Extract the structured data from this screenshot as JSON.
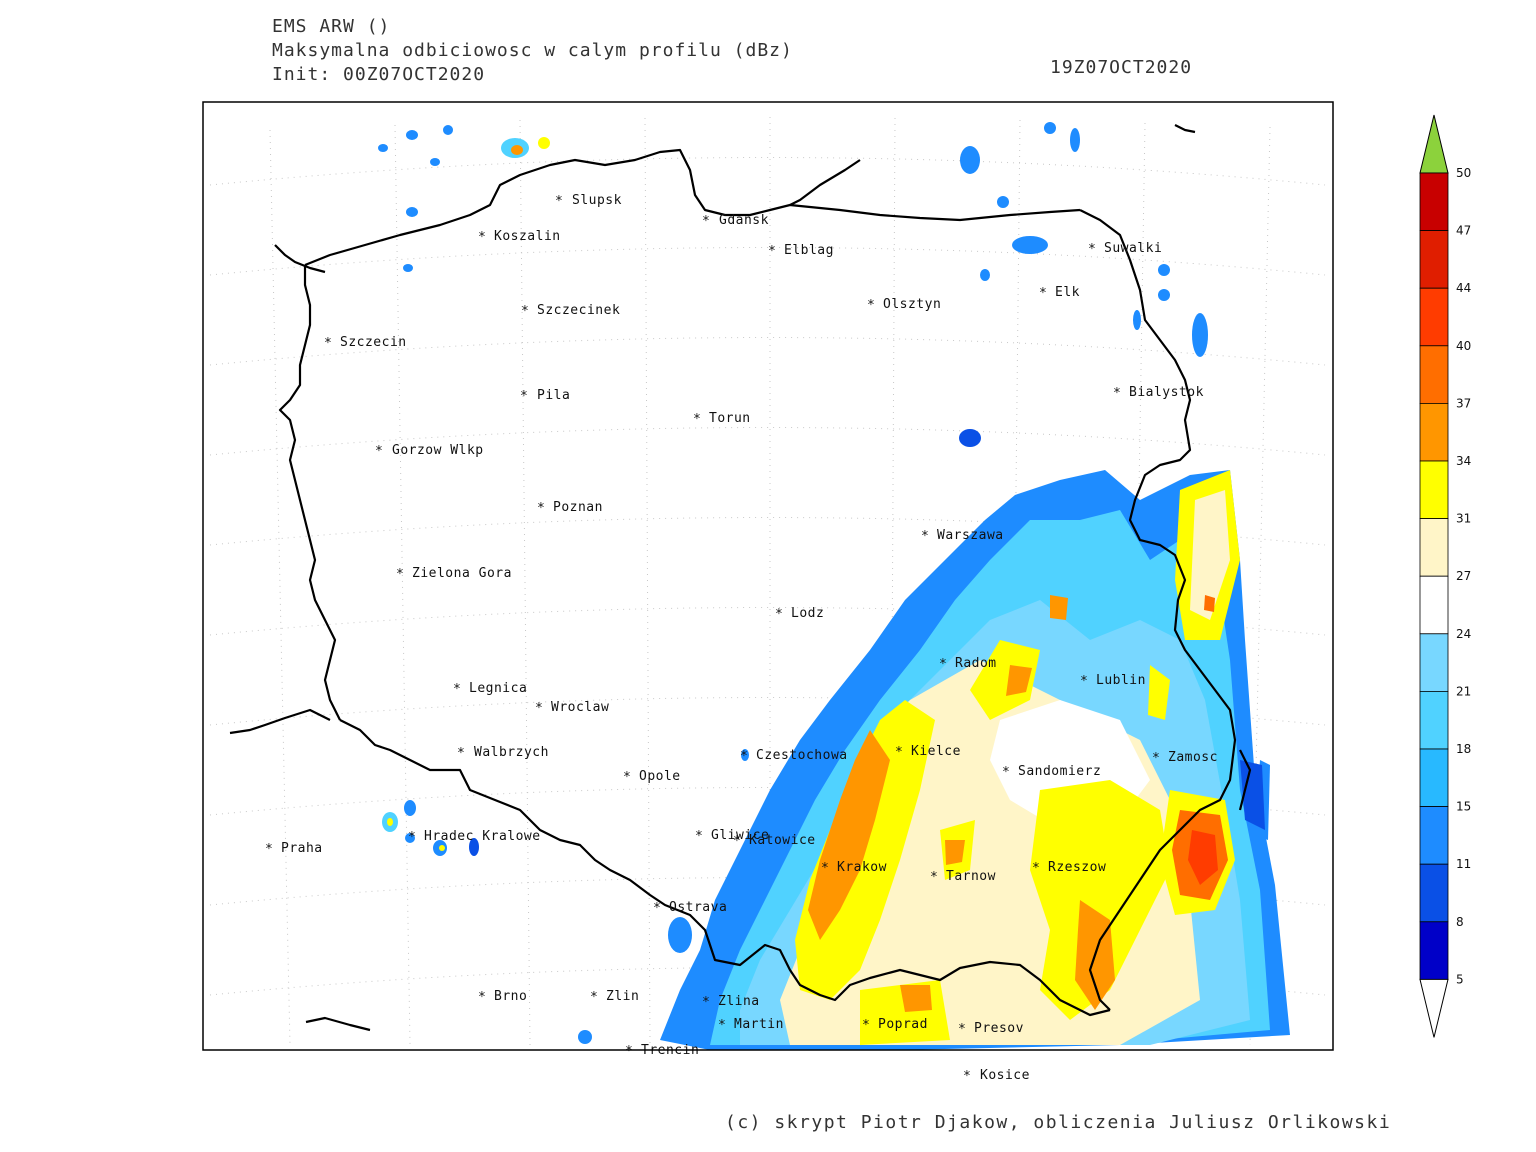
{
  "header": {
    "model": "EMS ARW ()",
    "field": "Maksymalna odbiciowosc w calym profilu (dBz)",
    "init": "Init: 00Z07OCT2020",
    "valid_time": "19Z07OCT2020"
  },
  "credit": "(c) skrypt Piotr Djakow, obliczenia Juliusz Orlikowski",
  "cities": [
    {
      "name": "Slupsk"
    },
    {
      "name": "Gdansk"
    },
    {
      "name": "Koszalin"
    },
    {
      "name": "Elblag"
    },
    {
      "name": "Suwalki"
    },
    {
      "name": "Elk"
    },
    {
      "name": "Olsztyn"
    },
    {
      "name": "Szczecinek"
    },
    {
      "name": "Szczecin"
    },
    {
      "name": "Bialystok"
    },
    {
      "name": "Pila"
    },
    {
      "name": "Torun"
    },
    {
      "name": "Gorzow Wlkp"
    },
    {
      "name": "Poznan"
    },
    {
      "name": "Warszawa"
    },
    {
      "name": "Zielona Gora"
    },
    {
      "name": "Lodz"
    },
    {
      "name": "Radom"
    },
    {
      "name": "Legnica"
    },
    {
      "name": "Lublin"
    },
    {
      "name": "Wroclaw"
    },
    {
      "name": "Walbrzych"
    },
    {
      "name": "Czestochowa"
    },
    {
      "name": "Kielce"
    },
    {
      "name": "Zamosc"
    },
    {
      "name": "Opole"
    },
    {
      "name": "Sandomierz"
    },
    {
      "name": "Hradec Kralowe"
    },
    {
      "name": "Gliwice"
    },
    {
      "name": "Katowice"
    },
    {
      "name": "Praha"
    },
    {
      "name": "Krakow"
    },
    {
      "name": "Rzeszow"
    },
    {
      "name": "Tarnow"
    },
    {
      "name": "Ostrava"
    },
    {
      "name": "Brno"
    },
    {
      "name": "Zlin"
    },
    {
      "name": "Zlina"
    },
    {
      "name": "Martin"
    },
    {
      "name": "Poprad"
    },
    {
      "name": "Presov"
    },
    {
      "name": "Trencin"
    },
    {
      "name": "Kosice"
    }
  ],
  "colorbar": {
    "levels": [
      "50",
      "47",
      "44",
      "40",
      "37",
      "34",
      "31",
      "27",
      "24",
      "21",
      "18",
      "15",
      "11",
      "8",
      "5"
    ],
    "colors": [
      "#c80000",
      "#e01e00",
      "#ff3c00",
      "#ff6e00",
      "#ff9600",
      "#ffff00",
      "#fff5c8",
      "#ffffff",
      "#78d7ff",
      "#50d2ff",
      "#28b9ff",
      "#1e8cff",
      "#0a50e6",
      "#0000c8"
    ],
    "over_color": "#8cd23c",
    "under_color": "#ffffff"
  }
}
